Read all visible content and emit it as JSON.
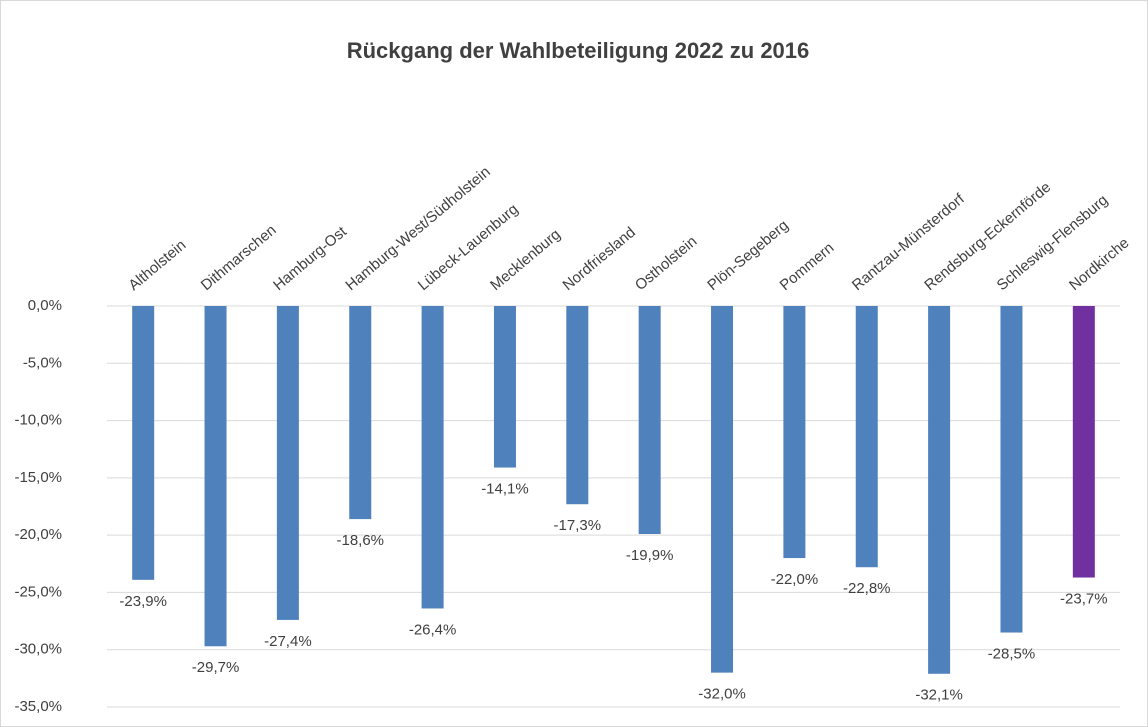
{
  "chart_data": {
    "type": "bar",
    "title": "Rückgang der Wahlbeteiligung 2022 zu 2016",
    "categories": [
      "Altholstein",
      "Dithmarschen",
      "Hamburg-Ost",
      "Hamburg-West/Südholstein",
      "Lübeck-Lauenburg",
      "Mecklenburg",
      "Nordfriesland",
      "Ostholstein",
      "Plön-Segeberg",
      "Pommern",
      "Rantzau-Münsterdorf",
      "Rendsburg-Eckernförde",
      "Schleswig-Flensburg",
      "Nordkirche"
    ],
    "values": [
      -23.9,
      -29.7,
      -27.4,
      -18.6,
      -26.4,
      -14.1,
      -17.3,
      -19.9,
      -32.0,
      -22.0,
      -22.8,
      -32.1,
      -28.5,
      -23.7
    ],
    "value_labels": [
      "-23,9%",
      "-29,7%",
      "-27,4%",
      "-18,6%",
      "-26,4%",
      "-14,1%",
      "-17,3%",
      "-19,9%",
      "-32,0%",
      "-22,0%",
      "-22,8%",
      "-32,1%",
      "-28,5%",
      "-23,7%"
    ],
    "colors": [
      "#4f81bd",
      "#4f81bd",
      "#4f81bd",
      "#4f81bd",
      "#4f81bd",
      "#4f81bd",
      "#4f81bd",
      "#4f81bd",
      "#4f81bd",
      "#4f81bd",
      "#4f81bd",
      "#4f81bd",
      "#4f81bd",
      "#7030a0"
    ],
    "ylim": [
      -35,
      0
    ],
    "yticks": [
      {
        "value": 0,
        "label": "0,0%"
      },
      {
        "value": -5,
        "label": "-5,0%"
      },
      {
        "value": -10,
        "label": "-10,0%"
      },
      {
        "value": -15,
        "label": "-15,0%"
      },
      {
        "value": -20,
        "label": "-20,0%"
      },
      {
        "value": -25,
        "label": "-25,0%"
      },
      {
        "value": -30,
        "label": "-30,0%"
      },
      {
        "value": -35,
        "label": "-35,0%"
      }
    ],
    "grid": true
  }
}
